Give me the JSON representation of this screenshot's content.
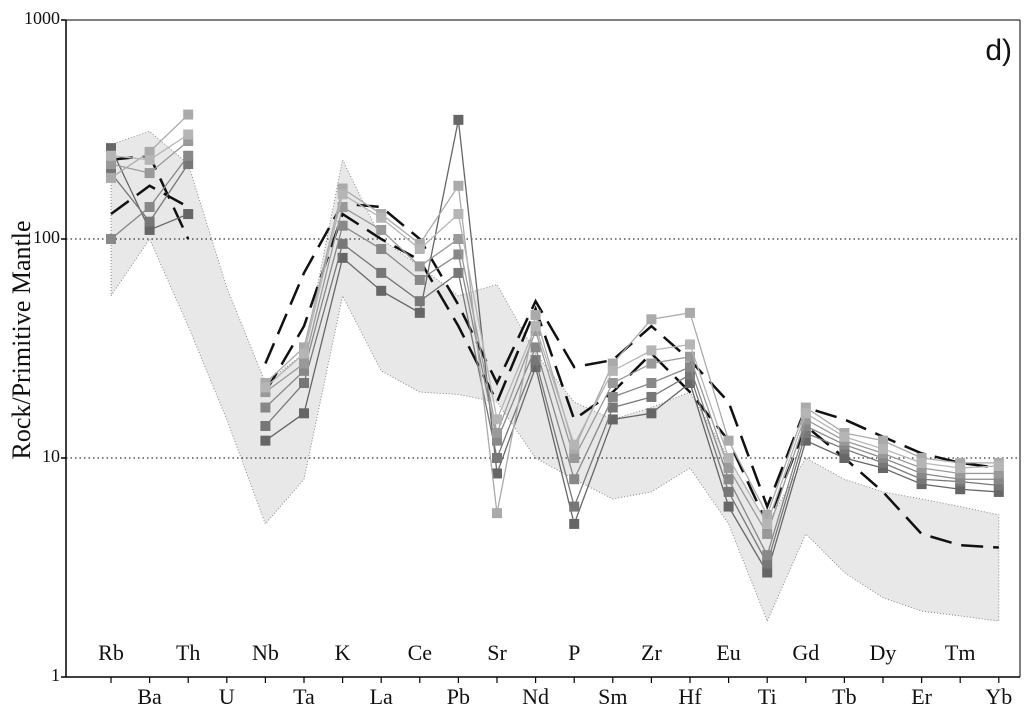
{
  "chart_data": {
    "type": "spider",
    "ylabel": "Rock/Primitive Mantle",
    "annotation": "d)",
    "log_scale": true,
    "grid": true,
    "ylim": [
      1,
      1000
    ],
    "yticks": [
      1,
      10,
      100,
      1000
    ],
    "categories": [
      "Rb",
      "Ba",
      "Th",
      "U",
      "Nb",
      "Ta",
      "K",
      "La",
      "Ce",
      "Pb",
      "Sr",
      "Nd",
      "P",
      "Sm",
      "Zr",
      "Hf",
      "Eu",
      "Ti",
      "Gd",
      "Tb",
      "Dy",
      "Er",
      "Tm",
      "Yb"
    ],
    "range": {
      "color": "#e8e8e8",
      "upper": [
        270,
        310,
        220,
        60,
        22,
        30,
        230,
        100,
        75,
        55,
        62,
        30,
        18,
        15,
        17,
        20,
        10,
        5,
        10,
        8,
        7,
        6.5,
        6,
        5.5
      ],
      "lower": [
        55,
        100,
        40,
        15,
        5,
        8,
        55,
        25,
        20,
        19.5,
        18,
        10,
        8,
        6.5,
        7,
        9,
        5,
        1.8,
        4.5,
        3,
        2.3,
        2,
        1.9,
        1.8
      ]
    },
    "series": [
      {
        "color": "#111111",
        "dashed": true,
        "values": [
          130,
          175,
          140,
          null,
          27,
          70,
          145,
          140,
          100,
          50,
          22,
          52,
          26,
          28,
          40,
          28,
          18,
          6,
          17,
          15,
          12.5,
          10.5,
          9.5,
          9
        ]
      },
      {
        "color": "#111111",
        "dashed": true,
        "values": [
          230,
          240,
          100,
          null,
          20,
          40,
          130,
          100,
          80,
          40,
          18,
          48,
          15,
          20,
          30,
          20,
          12,
          5,
          14,
          10,
          7,
          4.5,
          4,
          3.9
        ]
      },
      {
        "color": "#666666",
        "marker": "square",
        "values": [
          260,
          110,
          130,
          null,
          12,
          16,
          82,
          58,
          46,
          350,
          8.5,
          26,
          5,
          15,
          16,
          22,
          6,
          3,
          12,
          10,
          9,
          7.6,
          7.2,
          7
        ]
      },
      {
        "color": "#777777",
        "marker": "square",
        "values": [
          200,
          120,
          220,
          null,
          14,
          22,
          95,
          70,
          52,
          70,
          10,
          28,
          6,
          17,
          19,
          24,
          7,
          3.3,
          13,
          11,
          9.5,
          8,
          7.8,
          7.5
        ]
      },
      {
        "color": "#888888",
        "marker": "square",
        "values": [
          100,
          140,
          240,
          null,
          17,
          25,
          115,
          90,
          65,
          85,
          12,
          32,
          8,
          19,
          22,
          26,
          8,
          3.6,
          14,
          11.5,
          10,
          8.5,
          8,
          8
        ]
      },
      {
        "color": "#999999",
        "marker": "square",
        "values": [
          220,
          200,
          280,
          null,
          20,
          27,
          140,
          110,
          75,
          100,
          13,
          38,
          10,
          22,
          27,
          29,
          9,
          4.5,
          15,
          12,
          10.5,
          9,
          8.5,
          8.5
        ]
      },
      {
        "color": "#aaaaaa",
        "marker": "square",
        "values": [
          190,
          250,
          370,
          null,
          22,
          32,
          170,
          130,
          95,
          175,
          5.6,
          45,
          11,
          27,
          43,
          46,
          12,
          5.5,
          17,
          13,
          12,
          10,
          9.5,
          9.5
        ]
      },
      {
        "color": "#b5b5b5",
        "marker": "square",
        "values": [
          240,
          230,
          300,
          null,
          21,
          30,
          160,
          125,
          90,
          130,
          15,
          40,
          11.5,
          25,
          31,
          33,
          10,
          5,
          16,
          12.5,
          11,
          9.5,
          9,
          9.2
        ]
      }
    ]
  }
}
